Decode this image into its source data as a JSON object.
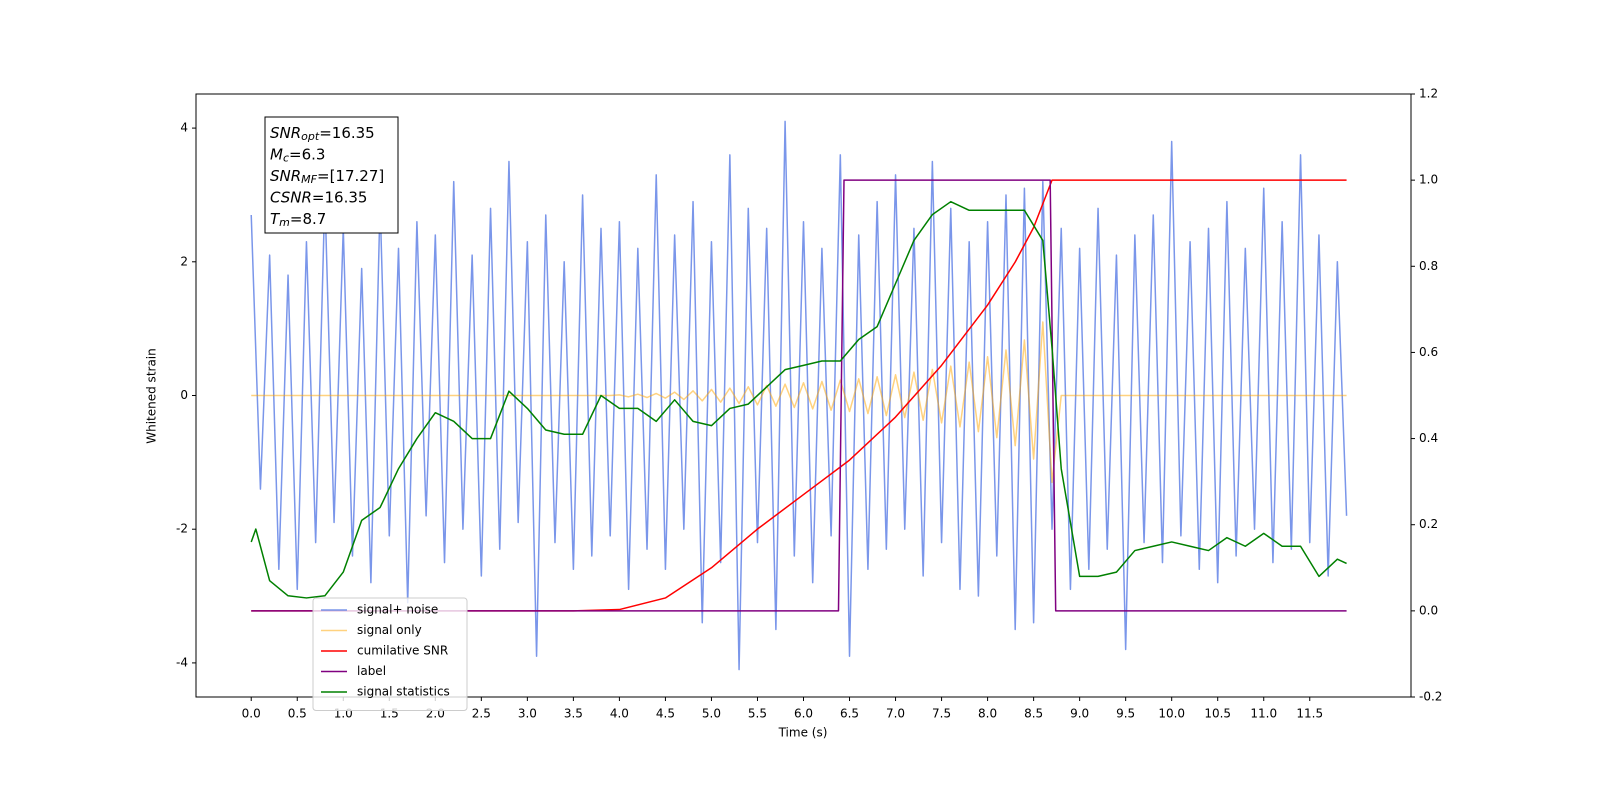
{
  "chart_data": {
    "type": "line",
    "xlabel": "Time (s)",
    "ylabel": "Whitened strain",
    "xlim": [
      -0.6,
      12.6
    ],
    "ylim": [
      -4.51,
      4.51
    ],
    "y2lim": [
      -0.2,
      1.2
    ],
    "xticks": [
      {
        "value": 0,
        "label": "0.0"
      },
      0.5,
      {
        "value": 1,
        "label": "1.0"
      },
      1.5,
      {
        "value": 2,
        "label": "2.0"
      },
      2.5,
      {
        "value": 3,
        "label": "3.0"
      },
      3.5,
      {
        "value": 4,
        "label": "4.0"
      },
      4.5,
      {
        "value": 5,
        "label": "5.0"
      },
      5.5,
      {
        "value": 6,
        "label": "6.0"
      },
      6.5,
      {
        "value": 7,
        "label": "7.0"
      },
      7.5,
      {
        "value": 8,
        "label": "8.0"
      },
      8.5,
      {
        "value": 9,
        "label": "9.0"
      },
      9.5,
      {
        "value": 10,
        "label": "10.0"
      },
      10.5,
      {
        "value": 11,
        "label": "11.0"
      },
      11.5
    ],
    "yticks": [
      -4,
      -2,
      0,
      2,
      4
    ],
    "y2ticks": [
      -0.2,
      {
        "value": 0,
        "label": "0.0"
      },
      0.2,
      0.4,
      0.6,
      0.8,
      {
        "value": 1,
        "label": "1.0"
      },
      1.2
    ],
    "legend": "lower left",
    "annotation": [
      {
        "text": "SNR",
        "sub": "opt",
        "value": "=16.35"
      },
      {
        "text": "M",
        "sub": "c",
        "value": "=6.3"
      },
      {
        "text": "SNR",
        "sub": "MF",
        "value": "=[17.27]"
      },
      {
        "text": "CSNR",
        "value": "=16.35"
      },
      {
        "text": "T",
        "sub": "m",
        "value": "=8.7"
      }
    ],
    "x": [
      0,
      0.1,
      0.2,
      0.3,
      0.4,
      0.5,
      0.6,
      0.7,
      0.8,
      0.9,
      1,
      1.1,
      1.2,
      1.3,
      1.4,
      1.5,
      1.6,
      1.7,
      1.8,
      1.9,
      2,
      2.1,
      2.2,
      2.3,
      2.4,
      2.5,
      2.6,
      2.7,
      2.8,
      2.9,
      3,
      3.1,
      3.2,
      3.3,
      3.4,
      3.5,
      3.6,
      3.7,
      3.8,
      3.9,
      4,
      4.1,
      4.2,
      4.3,
      4.4,
      4.5,
      4.6,
      4.7,
      4.8,
      4.9,
      5,
      5.1,
      5.2,
      5.3,
      5.4,
      5.5,
      5.6,
      5.7,
      5.8,
      5.9,
      6,
      6.1,
      6.2,
      6.3,
      6.4,
      6.5,
      6.6,
      6.7,
      6.8,
      6.9,
      7,
      7.1,
      7.2,
      7.3,
      7.4,
      7.5,
      7.6,
      7.7,
      7.8,
      7.9,
      8,
      8.1,
      8.2,
      8.3,
      8.4,
      8.5,
      8.6,
      8.7,
      8.8,
      8.9,
      9,
      9.1,
      9.2,
      9.3,
      9.4,
      9.5,
      9.6,
      9.7,
      9.8,
      9.9,
      10,
      10.1,
      10.2,
      10.3,
      10.4,
      10.5,
      10.6,
      10.7,
      10.8,
      10.9,
      11,
      11.1,
      11.2,
      11.3,
      11.4,
      11.5,
      11.6,
      11.7,
      11.8,
      11.9
    ],
    "series": [
      {
        "name": "signal+ noise",
        "color": "#4169e1",
        "alpha": 0.7,
        "values": [
          2.7,
          -1.4,
          2.1,
          -2.6,
          1.8,
          -2.9,
          2.3,
          -2.2,
          3.0,
          -1.9,
          2.5,
          -2.4,
          1.9,
          -2.8,
          2.9,
          -2.1,
          2.2,
          -3.1,
          2.6,
          -1.8,
          2.4,
          -2.5,
          3.2,
          -2.0,
          2.1,
          -2.7,
          2.8,
          -2.3,
          3.5,
          -1.9,
          2.3,
          -3.9,
          2.7,
          -2.2,
          2.0,
          -2.6,
          3.0,
          -2.4,
          2.5,
          -2.1,
          2.6,
          -2.9,
          2.2,
          -2.3,
          3.3,
          -2.6,
          2.4,
          -2.0,
          2.9,
          -3.4,
          2.3,
          -2.5,
          3.6,
          -4.1,
          2.8,
          -2.2,
          2.5,
          -3.5,
          4.1,
          -2.4,
          2.6,
          -2.8,
          2.2,
          -2.1,
          3.6,
          -3.9,
          2.4,
          -2.6,
          2.9,
          -2.3,
          3.3,
          -2.0,
          2.5,
          -2.7,
          3.5,
          -2.2,
          2.8,
          -2.9,
          2.3,
          -3.0,
          2.6,
          -2.4,
          3.0,
          -3.5,
          3.1,
          -3.4,
          3.2,
          -2.0,
          2.5,
          -2.9,
          2.2,
          -2.6,
          2.8,
          -2.3,
          2.1,
          -3.8,
          2.4,
          -2.2,
          2.7,
          -2.5,
          3.8,
          -2.1,
          2.3,
          -2.6,
          2.5,
          -2.8,
          2.9,
          -2.4,
          2.2,
          -2.0,
          3.1,
          -2.5,
          2.6,
          -2.3,
          3.6,
          -2.2,
          2.4,
          -2.7,
          2.0,
          -1.8
        ]
      },
      {
        "name": "signal only",
        "color": "#ffa500",
        "alpha": 0.5,
        "values": [
          0,
          0,
          0,
          0,
          0,
          0,
          0,
          0,
          0,
          0,
          0,
          0,
          0,
          0,
          0,
          0,
          0,
          0,
          0,
          0,
          0,
          0,
          0,
          0,
          0,
          0,
          0,
          0,
          0,
          0,
          0,
          0,
          0,
          0,
          0,
          0,
          0,
          0,
          0,
          0,
          0.01,
          -0.02,
          0.02,
          -0.03,
          0.03,
          -0.04,
          0.05,
          -0.06,
          0.07,
          -0.08,
          0.09,
          -0.1,
          0.11,
          -0.12,
          0.13,
          -0.14,
          0.15,
          -0.16,
          0.17,
          -0.18,
          0.19,
          -0.2,
          0.21,
          -0.22,
          0.23,
          -0.24,
          0.25,
          -0.27,
          0.28,
          -0.3,
          0.31,
          -0.33,
          0.35,
          -0.37,
          0.39,
          -0.41,
          0.44,
          -0.47,
          0.5,
          -0.54,
          0.58,
          -0.63,
          0.68,
          -0.75,
          0.83,
          -0.95,
          1.1,
          -1.3,
          0,
          0,
          0,
          0,
          0,
          0,
          0,
          0,
          0,
          0,
          0,
          0,
          0,
          0,
          0,
          0,
          0,
          0,
          0,
          0,
          0,
          0,
          0,
          0,
          0,
          0,
          0,
          0,
          0,
          0,
          0,
          0
        ]
      },
      {
        "name": "cumilative SNR",
        "color": "#ff0000",
        "axis": "y2",
        "x": [
          0,
          3.5,
          4,
          4.5,
          5,
          5.5,
          6,
          6.5,
          7,
          7.5,
          8,
          8.3,
          8.5,
          8.7,
          11.9
        ],
        "values": [
          0,
          0,
          0.003,
          0.03,
          0.1,
          0.19,
          0.27,
          0.35,
          0.45,
          0.57,
          0.71,
          0.81,
          0.89,
          1,
          1
        ]
      },
      {
        "name": "label",
        "color": "#800080",
        "axis": "y2",
        "x": [
          0,
          6.38,
          6.44,
          8.68,
          8.74,
          11.9
        ],
        "values": [
          0,
          0,
          1,
          1,
          0,
          0
        ]
      },
      {
        "name": "signal statistics",
        "color": "#008000",
        "axis": "y2",
        "x": [
          0,
          0.05,
          0.2,
          0.4,
          0.6,
          0.8,
          1,
          1.2,
          1.4,
          1.6,
          1.8,
          2,
          2.2,
          2.4,
          2.6,
          2.8,
          3,
          3.2,
          3.4,
          3.6,
          3.8,
          4,
          4.2,
          4.4,
          4.6,
          4.8,
          5,
          5.2,
          5.4,
          5.6,
          5.8,
          6,
          6.2,
          6.4,
          6.6,
          6.8,
          7,
          7.2,
          7.4,
          7.6,
          7.8,
          8,
          8.2,
          8.4,
          8.6,
          8.7,
          8.8,
          9,
          9.2,
          9.4,
          9.6,
          9.8,
          10,
          10.2,
          10.4,
          10.6,
          10.8,
          11,
          11.2,
          11.4,
          11.6,
          11.8,
          11.9
        ],
        "values": [
          0.16,
          0.19,
          0.07,
          0.035,
          0.03,
          0.035,
          0.09,
          0.21,
          0.24,
          0.33,
          0.4,
          0.46,
          0.44,
          0.4,
          0.4,
          0.51,
          0.47,
          0.42,
          0.41,
          0.41,
          0.5,
          0.47,
          0.47,
          0.44,
          0.49,
          0.44,
          0.43,
          0.47,
          0.48,
          0.52,
          0.56,
          0.57,
          0.58,
          0.58,
          0.63,
          0.66,
          0.76,
          0.86,
          0.92,
          0.95,
          0.93,
          0.93,
          0.93,
          0.93,
          0.86,
          0.61,
          0.33,
          0.08,
          0.08,
          0.09,
          0.14,
          0.15,
          0.16,
          0.15,
          0.14,
          0.17,
          0.15,
          0.18,
          0.15,
          0.15,
          0.08,
          0.12,
          0.11
        ]
      }
    ]
  }
}
